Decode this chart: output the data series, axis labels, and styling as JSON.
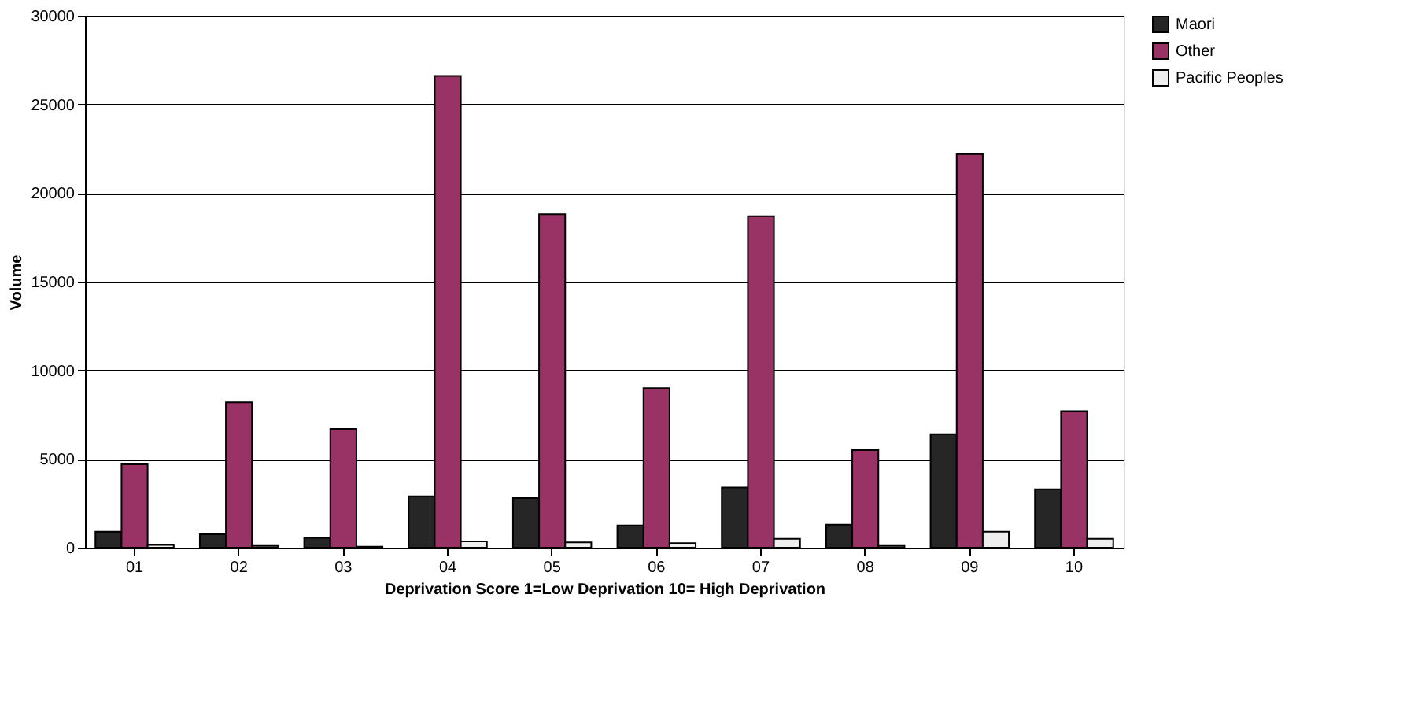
{
  "chart_data": {
    "type": "bar",
    "xlabel": "Deprivation Score  1=Low Deprivation  10= High Deprivation",
    "ylabel": "Volume",
    "categories": [
      "01",
      "02",
      "03",
      "04",
      "05",
      "06",
      "07",
      "08",
      "09",
      "10"
    ],
    "series": [
      {
        "name": "Maori",
        "color": "#262626",
        "values": [
          900,
          750,
          550,
          2900,
          2800,
          1250,
          3400,
          1300,
          6400,
          3300
        ]
      },
      {
        "name": "Other",
        "color": "#993366",
        "values": [
          4700,
          8200,
          6700,
          26600,
          18800,
          9000,
          18700,
          5500,
          22200,
          7700
        ]
      },
      {
        "name": "Pacific Peoples",
        "color": "#eeeeee",
        "values": [
          150,
          100,
          50,
          350,
          300,
          250,
          500,
          100,
          900,
          500
        ]
      }
    ],
    "ylim": [
      0,
      30000
    ],
    "yticks": [
      0,
      5000,
      10000,
      15000,
      20000,
      25000,
      30000
    ],
    "grid": "y",
    "legend": "right"
  }
}
